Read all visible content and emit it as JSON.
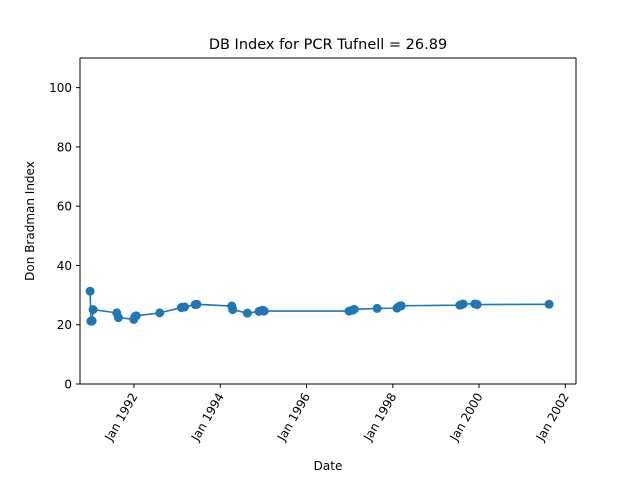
{
  "chart_data": {
    "type": "line",
    "title": "DB Index for PCR Tufnell = 26.89",
    "xlabel": "Date",
    "ylabel": "Don Bradman Index",
    "xlim": [
      "1990-10-01",
      "2002-04-01"
    ],
    "ylim": [
      0,
      110
    ],
    "x_ticks": [
      "1992-01-01",
      "1994-01-01",
      "1996-01-01",
      "1998-01-01",
      "2000-01-01",
      "2002-01-01"
    ],
    "x_tick_labels": [
      "Jan 1992",
      "Jan 1994",
      "Jan 1996",
      "Jan 1998",
      "Jan 2000",
      "Jan 2002"
    ],
    "y_ticks": [
      0,
      20,
      40,
      60,
      80,
      100
    ],
    "y_tick_labels": [
      "0",
      "20",
      "40",
      "60",
      "80",
      "100"
    ],
    "grid": false,
    "legend": "none",
    "series_color": "#1f77b4",
    "series": [
      {
        "name": "",
        "points": [
          {
            "x": "1990-12-26",
            "y": 31.3
          },
          {
            "x": "1991-01-01",
            "y": 21.2
          },
          {
            "x": "1991-01-06",
            "y": 21.2
          },
          {
            "x": "1991-01-12",
            "y": 21.3
          },
          {
            "x": "1991-01-20",
            "y": 25.1
          },
          {
            "x": "1991-08-08",
            "y": 24.0
          },
          {
            "x": "1991-08-22",
            "y": 22.4
          },
          {
            "x": "1991-12-30",
            "y": 21.8
          },
          {
            "x": "1992-01-10",
            "y": 22.7
          },
          {
            "x": "1992-01-20",
            "y": 23.0
          },
          {
            "x": "1992-08-06",
            "y": 24.0
          },
          {
            "x": "1993-02-05",
            "y": 25.8
          },
          {
            "x": "1993-02-13",
            "y": 25.9
          },
          {
            "x": "1993-03-05",
            "y": 26.0
          },
          {
            "x": "1993-06-03",
            "y": 26.8
          },
          {
            "x": "1993-06-17",
            "y": 26.9
          },
          {
            "x": "1994-04-08",
            "y": 26.3
          },
          {
            "x": "1994-04-16",
            "y": 25.1
          },
          {
            "x": "1994-08-18",
            "y": 23.9
          },
          {
            "x": "1994-11-25",
            "y": 24.5
          },
          {
            "x": "1994-12-24",
            "y": 24.9
          },
          {
            "x": "1995-01-01",
            "y": 24.8
          },
          {
            "x": "1995-01-07",
            "y": 24.6
          },
          {
            "x": "1996-12-26",
            "y": 24.6
          },
          {
            "x": "1997-01-24",
            "y": 24.9
          },
          {
            "x": "1997-02-08",
            "y": 25.2
          },
          {
            "x": "1997-08-21",
            "y": 25.5
          },
          {
            "x": "1998-02-05",
            "y": 25.6
          },
          {
            "x": "1998-02-20",
            "y": 26.1
          },
          {
            "x": "1998-03-05",
            "y": 26.3
          },
          {
            "x": "1998-03-13",
            "y": 26.4
          },
          {
            "x": "1999-07-22",
            "y": 26.6
          },
          {
            "x": "1999-08-05",
            "y": 26.8
          },
          {
            "x": "1999-08-19",
            "y": 27.0
          },
          {
            "x": "1999-11-26",
            "y": 27.0
          },
          {
            "x": "1999-12-09",
            "y": 26.9
          },
          {
            "x": "1999-12-16",
            "y": 26.8
          },
          {
            "x": "2001-08-16",
            "y": 26.89
          }
        ]
      }
    ]
  }
}
